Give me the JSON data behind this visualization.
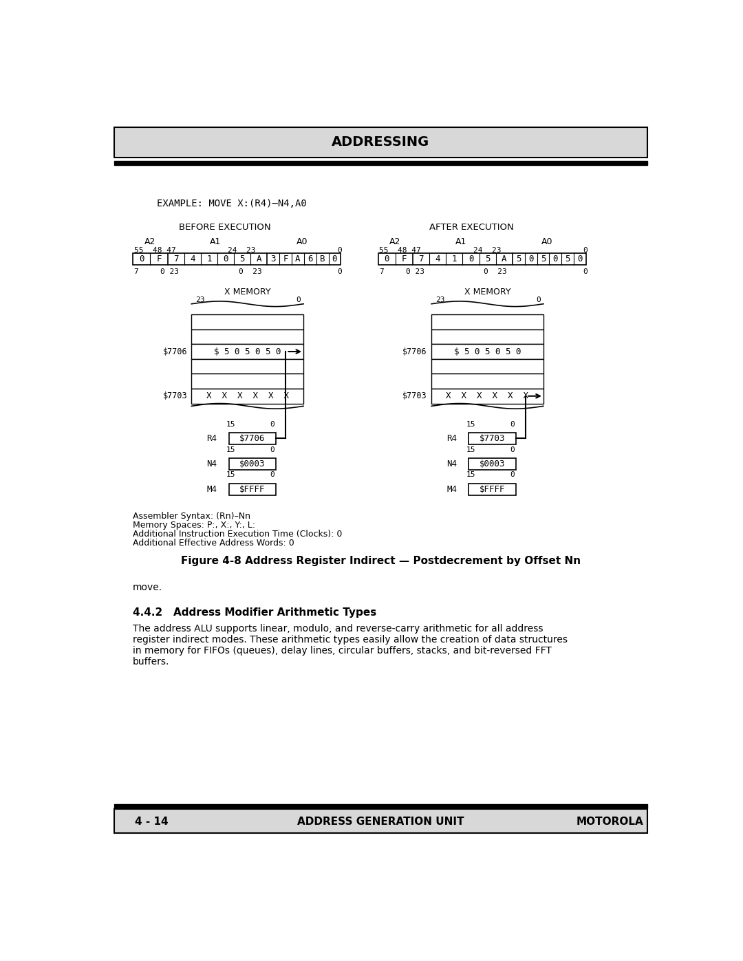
{
  "title": "ADDRESSING",
  "example_text": "EXAMPLE: MOVE X:(R4)–N4,A0",
  "before_label": "BEFORE EXECUTION",
  "after_label": "AFTER EXECUTION",
  "before_cells_a2": [
    "0",
    "F"
  ],
  "before_cells_a1": [
    "7",
    "4",
    "1",
    "0",
    "5",
    "A"
  ],
  "before_cells_a0": [
    "3",
    "F",
    "A",
    "6",
    "B",
    "0"
  ],
  "after_cells_a2": [
    "0",
    "F"
  ],
  "after_cells_a1": [
    "7",
    "4",
    "1",
    "0",
    "5",
    "A"
  ],
  "after_cells_a0": [
    "5",
    "0",
    "5",
    "0",
    "5",
    "0"
  ],
  "xmem_label": "X MEMORY",
  "mem_label_7706": "$7706",
  "mem_label_7703": "$7703",
  "mem_content_7706": "$ 5 0 5 0 5 0",
  "mem_content_7703": "X  X  X  X  X  X",
  "reg_r4_before": "$7706",
  "reg_r4_after": "$7703",
  "reg_n4": "$0003",
  "reg_m4": "$FFFF",
  "assembler_lines": [
    "Assembler Syntax: (Rn)–Nn",
    "Memory Spaces: P:, X:, Y:, L:",
    "Additional Instruction Execution Time (Clocks): 0",
    "Additional Effective Address Words: 0"
  ],
  "figure_caption": "Figure 4-8 Address Register Indirect — Postdecrement by Offset Nn",
  "move_text": "move.",
  "section_title": "4.4.2   Address Modifier Arithmetic Types",
  "body_text": "The address ALU supports linear, modulo, and reverse-carry arithmetic for all address\nregister indirect modes. These arithmetic types easily allow the creation of data structures\nin memory for FIFOs (queues), delay lines, circular buffers, stacks, and bit-reversed FFT\nbuffers.",
  "footer_left": "4 - 14",
  "footer_center": "ADDRESS GENERATION UNIT",
  "footer_right": "MOTOROLA",
  "bg_color": "#ffffff",
  "header_bg": "#d8d8d8",
  "box_color": "#000000",
  "text_color": "#000000"
}
